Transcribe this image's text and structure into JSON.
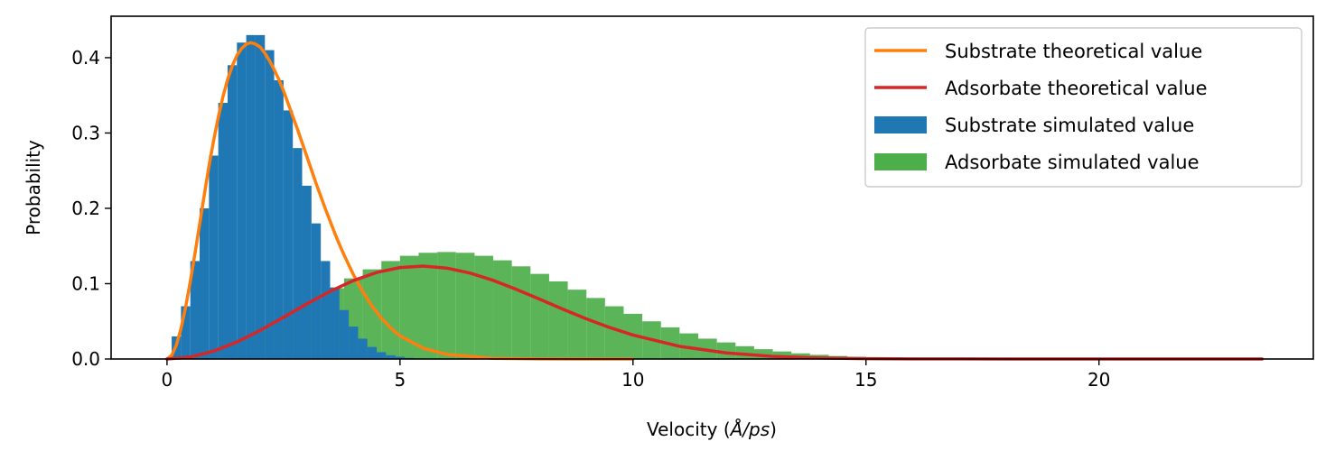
{
  "chart_data": {
    "type": "area",
    "title": "",
    "xlabel_prefix": "Velocity (",
    "xlabel_unit": "Å/ps",
    "xlabel_suffix": ")",
    "ylabel": "Probability",
    "xlim": [
      -1.2,
      24.6
    ],
    "ylim": [
      0,
      0.455
    ],
    "xticks": [
      0,
      5,
      10,
      15,
      20
    ],
    "yticks": [
      0.0,
      0.1,
      0.2,
      0.3,
      0.4
    ],
    "ytick_labels": [
      "0.0",
      "0.1",
      "0.2",
      "0.3",
      "0.4"
    ],
    "grid": false,
    "legend_position": "top-right",
    "histograms": [
      {
        "name": "Substrate simulated value",
        "color": "#1f77b4",
        "bin_width": 0.2,
        "x": [
          0.2,
          0.4,
          0.6,
          0.8,
          1.0,
          1.2,
          1.4,
          1.6,
          1.8,
          2.0,
          2.2,
          2.4,
          2.6,
          2.8,
          3.0,
          3.2,
          3.4,
          3.6,
          3.8,
          4.0,
          4.2,
          4.4,
          4.6,
          4.8,
          5.0,
          5.2,
          5.4,
          5.6,
          5.8,
          6.0
        ],
        "values": [
          0.03,
          0.07,
          0.13,
          0.2,
          0.27,
          0.34,
          0.39,
          0.42,
          0.43,
          0.43,
          0.41,
          0.37,
          0.33,
          0.28,
          0.23,
          0.18,
          0.13,
          0.095,
          0.065,
          0.043,
          0.027,
          0.016,
          0.009,
          0.005,
          0.003,
          0.0015,
          0.0008,
          0.0004,
          0.0002,
          0.0001
        ]
      },
      {
        "name": "Adsorbate simulated value",
        "color": "#4daf4a",
        "bin_width": 0.4,
        "x": [
          0.4,
          0.8,
          1.2,
          1.6,
          2.0,
          2.4,
          2.8,
          3.2,
          3.6,
          4.0,
          4.4,
          4.8,
          5.2,
          5.6,
          6.0,
          6.4,
          6.8,
          7.2,
          7.6,
          8.0,
          8.4,
          8.8,
          9.2,
          9.6,
          10.0,
          10.4,
          10.8,
          11.2,
          11.6,
          12.0,
          12.4,
          12.8,
          13.2,
          13.6,
          14.0,
          14.4,
          14.8,
          15.2,
          15.6,
          16.0,
          16.4,
          16.8,
          17.2,
          17.6,
          18.0,
          18.4,
          18.8,
          19.2,
          19.6,
          20.0,
          20.4,
          20.8,
          21.2,
          21.6,
          22.0,
          22.4,
          22.8,
          23.2
        ],
        "values": [
          0.003,
          0.008,
          0.015,
          0.025,
          0.037,
          0.05,
          0.064,
          0.079,
          0.094,
          0.107,
          0.119,
          0.13,
          0.137,
          0.141,
          0.142,
          0.141,
          0.137,
          0.131,
          0.123,
          0.113,
          0.103,
          0.092,
          0.081,
          0.07,
          0.06,
          0.05,
          0.042,
          0.034,
          0.027,
          0.022,
          0.017,
          0.013,
          0.01,
          0.0075,
          0.0055,
          0.004,
          0.0029,
          0.002,
          0.0014,
          0.001,
          0.0007,
          0.0005,
          0.0003,
          0.0002,
          0.00015,
          0.0001,
          7e-05,
          5e-05,
          3e-05,
          2e-05,
          1e-05,
          1e-05,
          0,
          0,
          0,
          0,
          0,
          0
        ]
      }
    ],
    "lines": [
      {
        "name": "Substrate theoretical value",
        "color": "#ff7f0e",
        "x": [
          0,
          0.1,
          0.2,
          0.3,
          0.4,
          0.5,
          0.6,
          0.7,
          0.8,
          0.9,
          1.0,
          1.1,
          1.2,
          1.3,
          1.4,
          1.5,
          1.6,
          1.7,
          1.8,
          1.9,
          2.0,
          2.1,
          2.2,
          2.3,
          2.4,
          2.5,
          2.6,
          2.7,
          2.8,
          2.9,
          3.0,
          3.1,
          3.2,
          3.3,
          3.4,
          3.5,
          3.6,
          3.7,
          3.8,
          3.9,
          4.0,
          4.2,
          4.4,
          4.6,
          4.8,
          5.0,
          5.5,
          6.0,
          7.0,
          8.0,
          9.0,
          10.0
        ],
        "values": [
          0.0,
          0.0047,
          0.0185,
          0.0404,
          0.0691,
          0.103,
          0.14,
          0.179,
          0.218,
          0.256,
          0.29,
          0.321,
          0.348,
          0.371,
          0.389,
          0.403,
          0.412,
          0.418,
          0.42,
          0.418,
          0.414,
          0.406,
          0.396,
          0.384,
          0.371,
          0.356,
          0.339,
          0.322,
          0.305,
          0.287,
          0.269,
          0.251,
          0.233,
          0.216,
          0.199,
          0.183,
          0.167,
          0.152,
          0.138,
          0.125,
          0.112,
          0.0894,
          0.0701,
          0.0542,
          0.0412,
          0.0308,
          0.0143,
          0.0062,
          0.0009,
          0.0001,
          0.0,
          0.0
        ]
      },
      {
        "name": "Adsorbate theoretical value",
        "color": "#d62728",
        "x": [
          0,
          0.5,
          1,
          1.5,
          2,
          2.5,
          3,
          3.5,
          4,
          4.5,
          5,
          5.5,
          6,
          6.5,
          7,
          7.5,
          8,
          8.5,
          9,
          9.5,
          10,
          11,
          12,
          13,
          14,
          15,
          16,
          17,
          18,
          19,
          20,
          21,
          22,
          23.5
        ],
        "values": [
          0.0,
          0.0026,
          0.0104,
          0.0226,
          0.038,
          0.0553,
          0.0731,
          0.0898,
          0.1041,
          0.1149,
          0.1214,
          0.1233,
          0.1207,
          0.1141,
          0.1044,
          0.0924,
          0.0793,
          0.066,
          0.0533,
          0.0418,
          0.0318,
          0.0168,
          0.0081,
          0.0035,
          0.0014,
          0.0005,
          0.0002,
          0.0001,
          0.0,
          0.0,
          0.0,
          0.0,
          0.0,
          0.0
        ]
      }
    ],
    "legend": [
      {
        "label": "Substrate theoretical value",
        "kind": "line",
        "color": "#ff7f0e"
      },
      {
        "label": "Adsorbate theoretical value",
        "kind": "line",
        "color": "#d62728"
      },
      {
        "label": "Substrate simulated value",
        "kind": "patch",
        "color": "#1f77b4"
      },
      {
        "label": "Adsorbate simulated value",
        "kind": "patch",
        "color": "#4daf4a"
      }
    ]
  }
}
